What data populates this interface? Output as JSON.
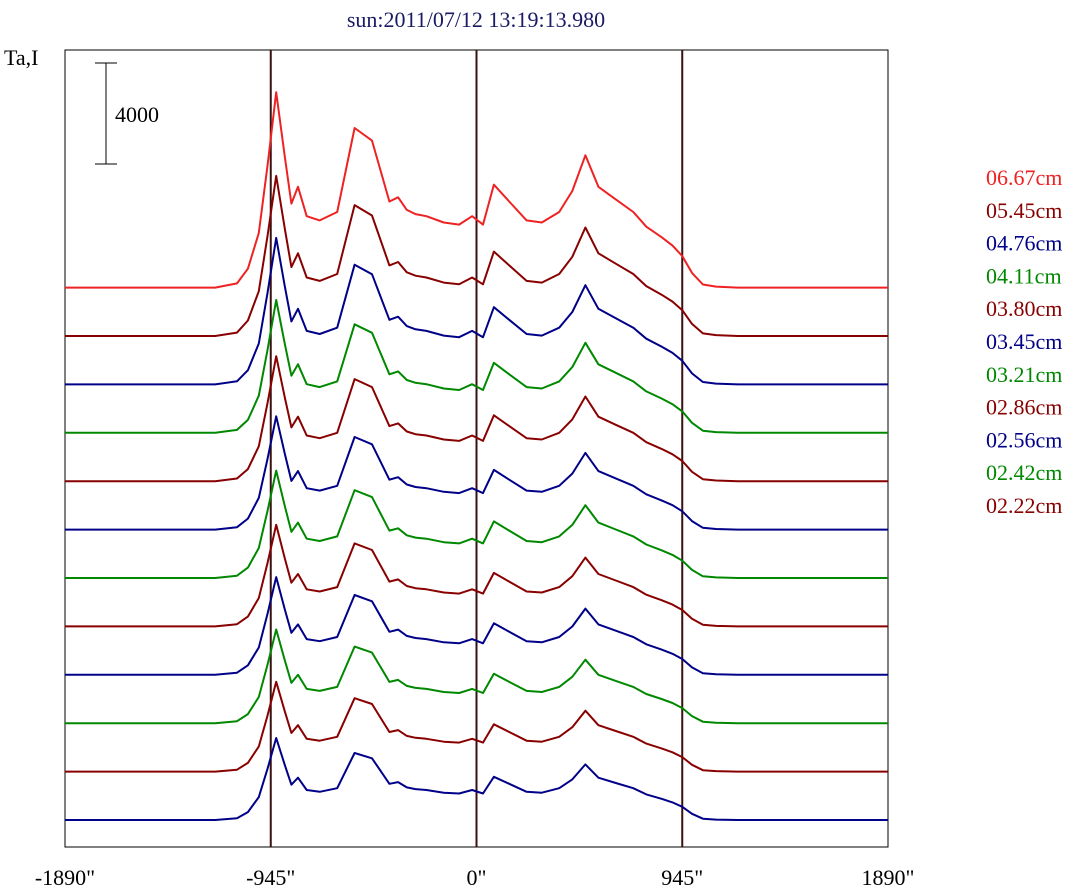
{
  "chart_data": {
    "type": "line",
    "title": "sun:2011/07/12 13:19:13.980",
    "ylabel": "Ta,I",
    "xlabel": "",
    "x_tick_labels": [
      "-1890\"",
      "-945\"",
      "0\"",
      "945\"",
      "1890\""
    ],
    "x_ticks": [
      -1890,
      -945,
      0,
      945,
      1890
    ],
    "xlim": [
      -1890,
      1890
    ],
    "vertical_lines_x": [
      -945,
      0,
      945
    ],
    "scale_bar": {
      "label": "4000",
      "value": 4000
    },
    "grid": false,
    "legend_position": "right",
    "x": [
      -1890,
      -1200,
      -1100,
      -1050,
      -1000,
      -960,
      -920,
      -880,
      -850,
      -820,
      -780,
      -720,
      -640,
      -560,
      -480,
      -400,
      -360,
      -320,
      -280,
      -230,
      -150,
      -80,
      -20,
      30,
      80,
      150,
      230,
      300,
      380,
      440,
      500,
      560,
      640,
      720,
      780,
      850,
      900,
      945,
      990,
      1040,
      1100,
      1200,
      1890
    ],
    "series": [
      {
        "name": "06.67cm",
        "color": "#ee2222",
        "offset": 11,
        "amp": 1.0
      },
      {
        "name": "05.45cm",
        "color": "#880000",
        "offset": 10,
        "amp": 0.82
      },
      {
        "name": "04.76cm",
        "color": "#000088",
        "offset": 9,
        "amp": 0.75
      },
      {
        "name": "04.11cm",
        "color": "#008800",
        "offset": 8,
        "amp": 0.68
      },
      {
        "name": "03.80cm",
        "color": "#880000",
        "offset": 7,
        "amp": 0.64
      },
      {
        "name": "03.45cm",
        "color": "#000088",
        "offset": 6,
        "amp": 0.58
      },
      {
        "name": "03.21cm",
        "color": "#008800",
        "offset": 5,
        "amp": 0.55
      },
      {
        "name": "02.86cm",
        "color": "#880000",
        "offset": 4,
        "amp": 0.52
      },
      {
        "name": "02.56cm",
        "color": "#000088",
        "offset": 3,
        "amp": 0.5
      },
      {
        "name": "02.42cm",
        "color": "#008800",
        "offset": 2,
        "amp": 0.48
      },
      {
        "name": "02.22cm",
        "color": "#880000",
        "offset": 1,
        "amp": 0.46
      },
      {
        "name": "",
        "color": "#000088",
        "offset": 0,
        "amp": 0.42
      }
    ],
    "base_profile": [
      0,
      0,
      0.2,
      0.9,
      2.6,
      5.8,
      9.3,
      6.2,
      4.0,
      4.8,
      3.4,
      3.2,
      3.6,
      7.6,
      7.0,
      4.1,
      4.3,
      3.7,
      3.5,
      3.4,
      3.1,
      3.0,
      3.4,
      3.0,
      4.9,
      4.1,
      3.2,
      3.1,
      3.6,
      4.6,
      6.3,
      4.8,
      4.2,
      3.6,
      2.9,
      2.4,
      2.0,
      1.5,
      0.7,
      0.15,
      0.05,
      0,
      0
    ]
  }
}
